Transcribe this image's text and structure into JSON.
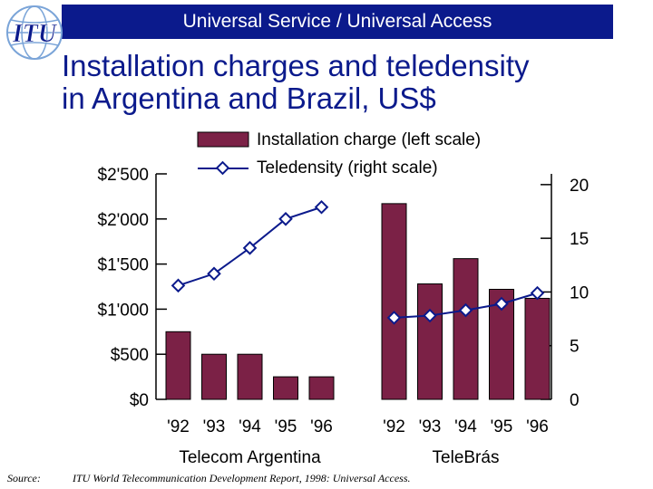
{
  "header": {
    "text": "Universal Service / Universal Access"
  },
  "logo": {
    "text": "ITU"
  },
  "title": {
    "line1": "Installation charges and teledensity",
    "line2": "in Argentina and Brazil, US$"
  },
  "colors": {
    "header_bg": "#0b1a8c",
    "title": "#0b1a8c",
    "bar": "#7b2146",
    "line": "#0b1a8c"
  },
  "chart_data": {
    "type": "bar",
    "categories": [
      "'92",
      "'93",
      "'94",
      "'95",
      "'96"
    ],
    "groups": [
      "Telecom Argentina",
      "TeleBrás"
    ],
    "series": [
      {
        "name": "Installation charge (left scale)",
        "kind": "bar",
        "axis": "left",
        "values": {
          "Telecom Argentina": [
            750,
            500,
            500,
            250,
            250
          ],
          "TeleBrás": [
            2170,
            1280,
            1560,
            1220,
            1120
          ]
        }
      },
      {
        "name": "Teledensity (right scale)",
        "kind": "line",
        "axis": "right",
        "values": {
          "Telecom Argentina": [
            10.6,
            11.7,
            14.1,
            16.8,
            17.9
          ],
          "TeleBrás": [
            7.6,
            7.8,
            8.3,
            8.9,
            9.9
          ]
        }
      }
    ],
    "left_axis": {
      "ticks": [
        0,
        500,
        1000,
        1500,
        2000,
        2500
      ],
      "tick_labels": [
        "$0",
        "$500",
        "$1'000",
        "$1'500",
        "$2'000",
        "$2'500"
      ],
      "ylim": [
        0,
        2500
      ]
    },
    "right_axis": {
      "ticks": [
        0,
        5,
        10,
        15,
        20
      ],
      "tick_labels": [
        "0",
        "5",
        "10",
        "15",
        "20"
      ],
      "ylim": [
        0,
        21
      ]
    },
    "legend_position": "top"
  },
  "source": {
    "label": "Source:",
    "text": "ITU World Telecommunication Development Report, 1998: Universal Access."
  }
}
